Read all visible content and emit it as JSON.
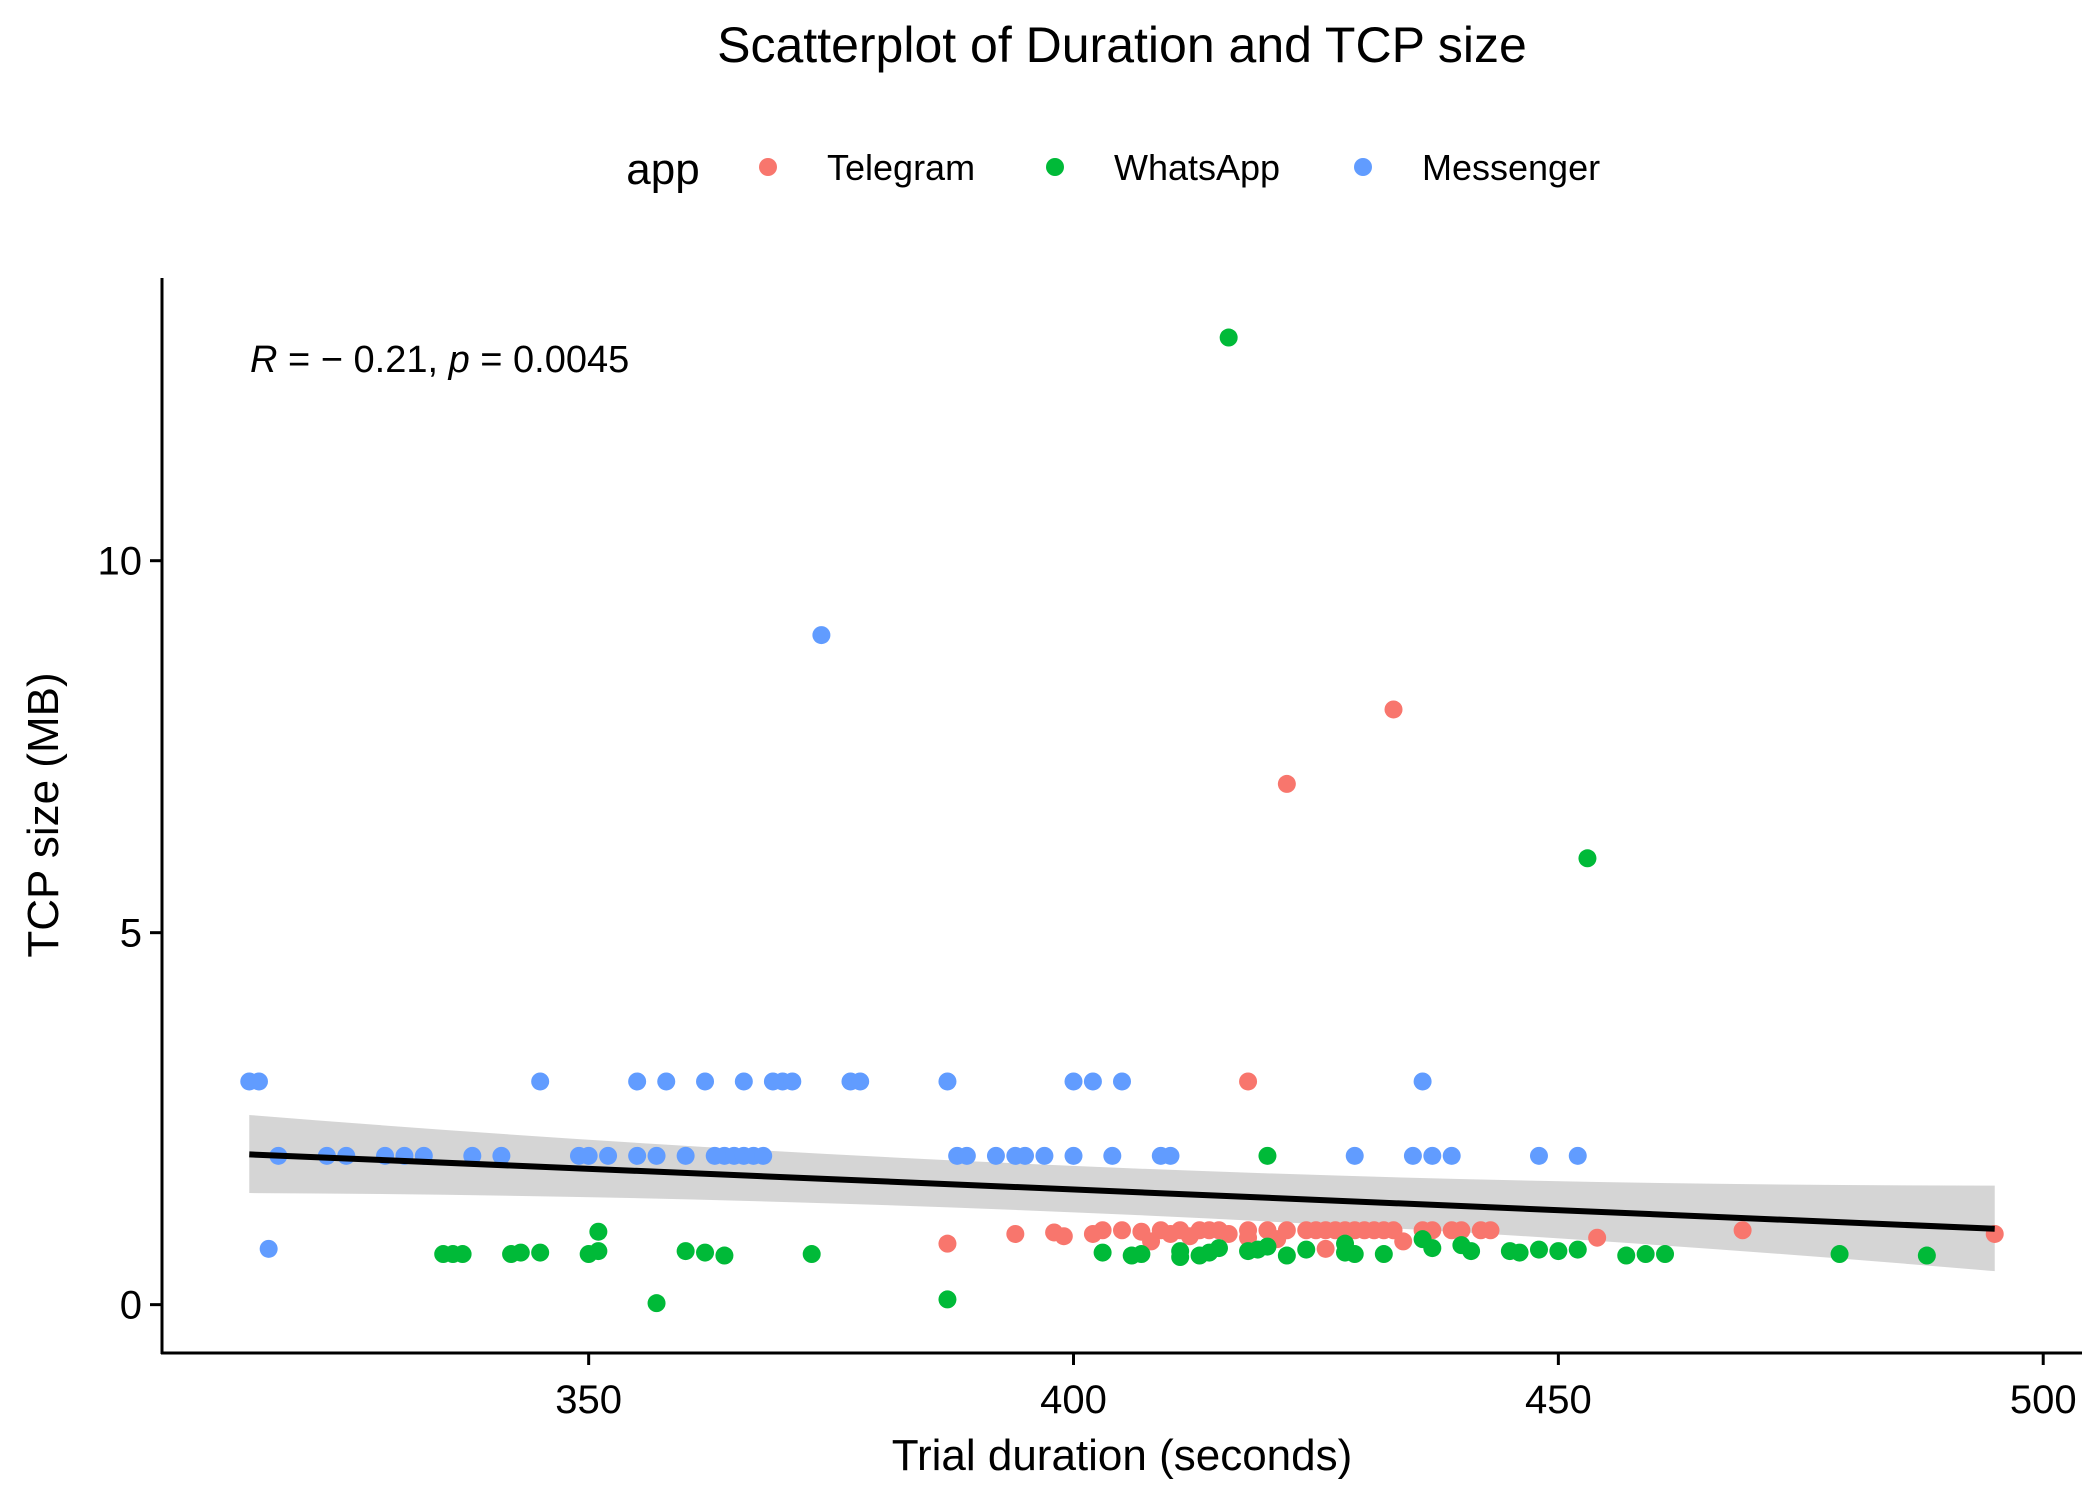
{
  "chart_data": {
    "type": "scatter",
    "title": "Scatterplot of Duration and TCP size",
    "xlabel": "Trial duration (seconds)",
    "ylabel": "TCP size (MB)",
    "xlim": [
      306,
      504
    ],
    "ylim": [
      -0.65,
      13.8
    ],
    "xticks": [
      350,
      400,
      450,
      500
    ],
    "xtick_labels": [
      "350",
      "400",
      "450",
      "500"
    ],
    "yticks": [
      0,
      5,
      10
    ],
    "ytick_labels": [
      "0",
      "5",
      "10"
    ],
    "grid": false,
    "legend": {
      "position": "top",
      "title": "app",
      "entries": [
        "Telegram",
        "WhatsApp",
        "Messenger"
      ]
    },
    "annotation": {
      "r_label": "R",
      "r_value": " = − 0.21, ",
      "p_label": "p",
      "p_value": " = 0.0045"
    },
    "regression": {
      "x_range": [
        315,
        495
      ],
      "y_start": 2.02,
      "y_end": 1.02,
      "ci_lower_start": 1.5,
      "ci_upper_start": 2.55,
      "ci_lower_mid": 1.35,
      "ci_upper_mid": 1.65,
      "ci_lower_end": 0.45,
      "ci_upper_end": 1.6,
      "x_mid": 405
    },
    "series": [
      {
        "name": "Telegram",
        "color": "#F8766D",
        "points": [
          [
            387,
            0.82
          ],
          [
            394,
            0.95
          ],
          [
            398,
            0.97
          ],
          [
            399,
            0.92
          ],
          [
            402,
            0.95
          ],
          [
            403,
            1.0
          ],
          [
            405,
            1.0
          ],
          [
            407,
            0.98
          ],
          [
            408,
            0.85
          ],
          [
            409,
            1.0
          ],
          [
            410,
            0.95
          ],
          [
            411,
            1.0
          ],
          [
            412,
            0.92
          ],
          [
            413,
            1.0
          ],
          [
            414,
            1.0
          ],
          [
            415,
            1.0
          ],
          [
            416,
            0.95
          ],
          [
            418,
            0.9
          ],
          [
            418,
            1.0
          ],
          [
            418,
            3.0
          ],
          [
            420,
            1.0
          ],
          [
            421,
            0.88
          ],
          [
            422,
            1.0
          ],
          [
            424,
            1.0
          ],
          [
            425,
            1.0
          ],
          [
            426,
            0.75
          ],
          [
            426,
            1.0
          ],
          [
            427,
            1.0
          ],
          [
            428,
            1.0
          ],
          [
            429,
            1.0
          ],
          [
            430,
            1.0
          ],
          [
            431,
            1.0
          ],
          [
            432,
            1.0
          ],
          [
            433,
            1.0
          ],
          [
            433,
            8.0
          ],
          [
            434,
            0.85
          ],
          [
            436,
            1.0
          ],
          [
            437,
            1.0
          ],
          [
            439,
            1.0
          ],
          [
            440,
            1.0
          ],
          [
            442,
            1.0
          ],
          [
            443,
            1.0
          ],
          [
            422,
            7.0
          ],
          [
            454,
            0.9
          ],
          [
            469,
            1.0
          ],
          [
            495,
            0.95
          ]
        ]
      },
      {
        "name": "WhatsApp",
        "color": "#00BA38",
        "points": [
          [
            335,
            0.68
          ],
          [
            336,
            0.68
          ],
          [
            337,
            0.68
          ],
          [
            342,
            0.68
          ],
          [
            343,
            0.7
          ],
          [
            345,
            0.7
          ],
          [
            350,
            0.68
          ],
          [
            351,
            0.72
          ],
          [
            351,
            0.98
          ],
          [
            357,
            0.02
          ],
          [
            360,
            0.72
          ],
          [
            362,
            0.7
          ],
          [
            364,
            0.66
          ],
          [
            373,
            0.68
          ],
          [
            387,
            0.07
          ],
          [
            403,
            0.7
          ],
          [
            406,
            0.66
          ],
          [
            407,
            0.68
          ],
          [
            411,
            0.72
          ],
          [
            411,
            0.64
          ],
          [
            413,
            0.66
          ],
          [
            414,
            0.7
          ],
          [
            415,
            0.76
          ],
          [
            416,
            13.0
          ],
          [
            418,
            0.72
          ],
          [
            419,
            0.74
          ],
          [
            420,
            0.78
          ],
          [
            420,
            2.0
          ],
          [
            422,
            0.66
          ],
          [
            424,
            0.74
          ],
          [
            428,
            0.7
          ],
          [
            428,
            0.82
          ],
          [
            429,
            0.68
          ],
          [
            432,
            0.68
          ],
          [
            436,
            0.88
          ],
          [
            437,
            0.76
          ],
          [
            440,
            0.8
          ],
          [
            441,
            0.72
          ],
          [
            445,
            0.72
          ],
          [
            446,
            0.7
          ],
          [
            448,
            0.74
          ],
          [
            450,
            0.72
          ],
          [
            452,
            0.74
          ],
          [
            453,
            6.0
          ],
          [
            457,
            0.66
          ],
          [
            459,
            0.68
          ],
          [
            461,
            0.68
          ],
          [
            479,
            0.68
          ],
          [
            488,
            0.66
          ]
        ]
      },
      {
        "name": "Messenger",
        "color": "#619CFF",
        "points": [
          [
            315,
            3.0
          ],
          [
            316,
            3.0
          ],
          [
            317,
            0.75
          ],
          [
            318,
            2.0
          ],
          [
            323,
            2.0
          ],
          [
            325,
            2.0
          ],
          [
            329,
            2.0
          ],
          [
            331,
            2.0
          ],
          [
            333,
            2.0
          ],
          [
            338,
            2.0
          ],
          [
            341,
            2.0
          ],
          [
            345,
            3.0
          ],
          [
            349,
            2.0
          ],
          [
            350,
            2.0
          ],
          [
            352,
            2.0
          ],
          [
            355,
            2.0
          ],
          [
            355,
            3.0
          ],
          [
            357,
            2.0
          ],
          [
            358,
            3.0
          ],
          [
            360,
            2.0
          ],
          [
            362,
            3.0
          ],
          [
            363,
            2.0
          ],
          [
            364,
            2.0
          ],
          [
            365,
            2.0
          ],
          [
            366,
            2.0
          ],
          [
            366,
            3.0
          ],
          [
            367,
            2.0
          ],
          [
            368,
            2.0
          ],
          [
            369,
            3.0
          ],
          [
            370,
            3.0
          ],
          [
            371,
            3.0
          ],
          [
            374,
            9.0
          ],
          [
            377,
            3.0
          ],
          [
            378,
            3.0
          ],
          [
            387,
            3.0
          ],
          [
            388,
            2.0
          ],
          [
            389,
            2.0
          ],
          [
            392,
            2.0
          ],
          [
            394,
            2.0
          ],
          [
            395,
            2.0
          ],
          [
            397,
            2.0
          ],
          [
            400,
            2.0
          ],
          [
            400,
            3.0
          ],
          [
            402,
            3.0
          ],
          [
            404,
            2.0
          ],
          [
            405,
            3.0
          ],
          [
            409,
            2.0
          ],
          [
            410,
            2.0
          ],
          [
            429,
            2.0
          ],
          [
            435,
            2.0
          ],
          [
            436,
            3.0
          ],
          [
            437,
            2.0
          ],
          [
            439,
            2.0
          ],
          [
            448,
            2.0
          ],
          [
            452,
            2.0
          ]
        ]
      }
    ]
  }
}
